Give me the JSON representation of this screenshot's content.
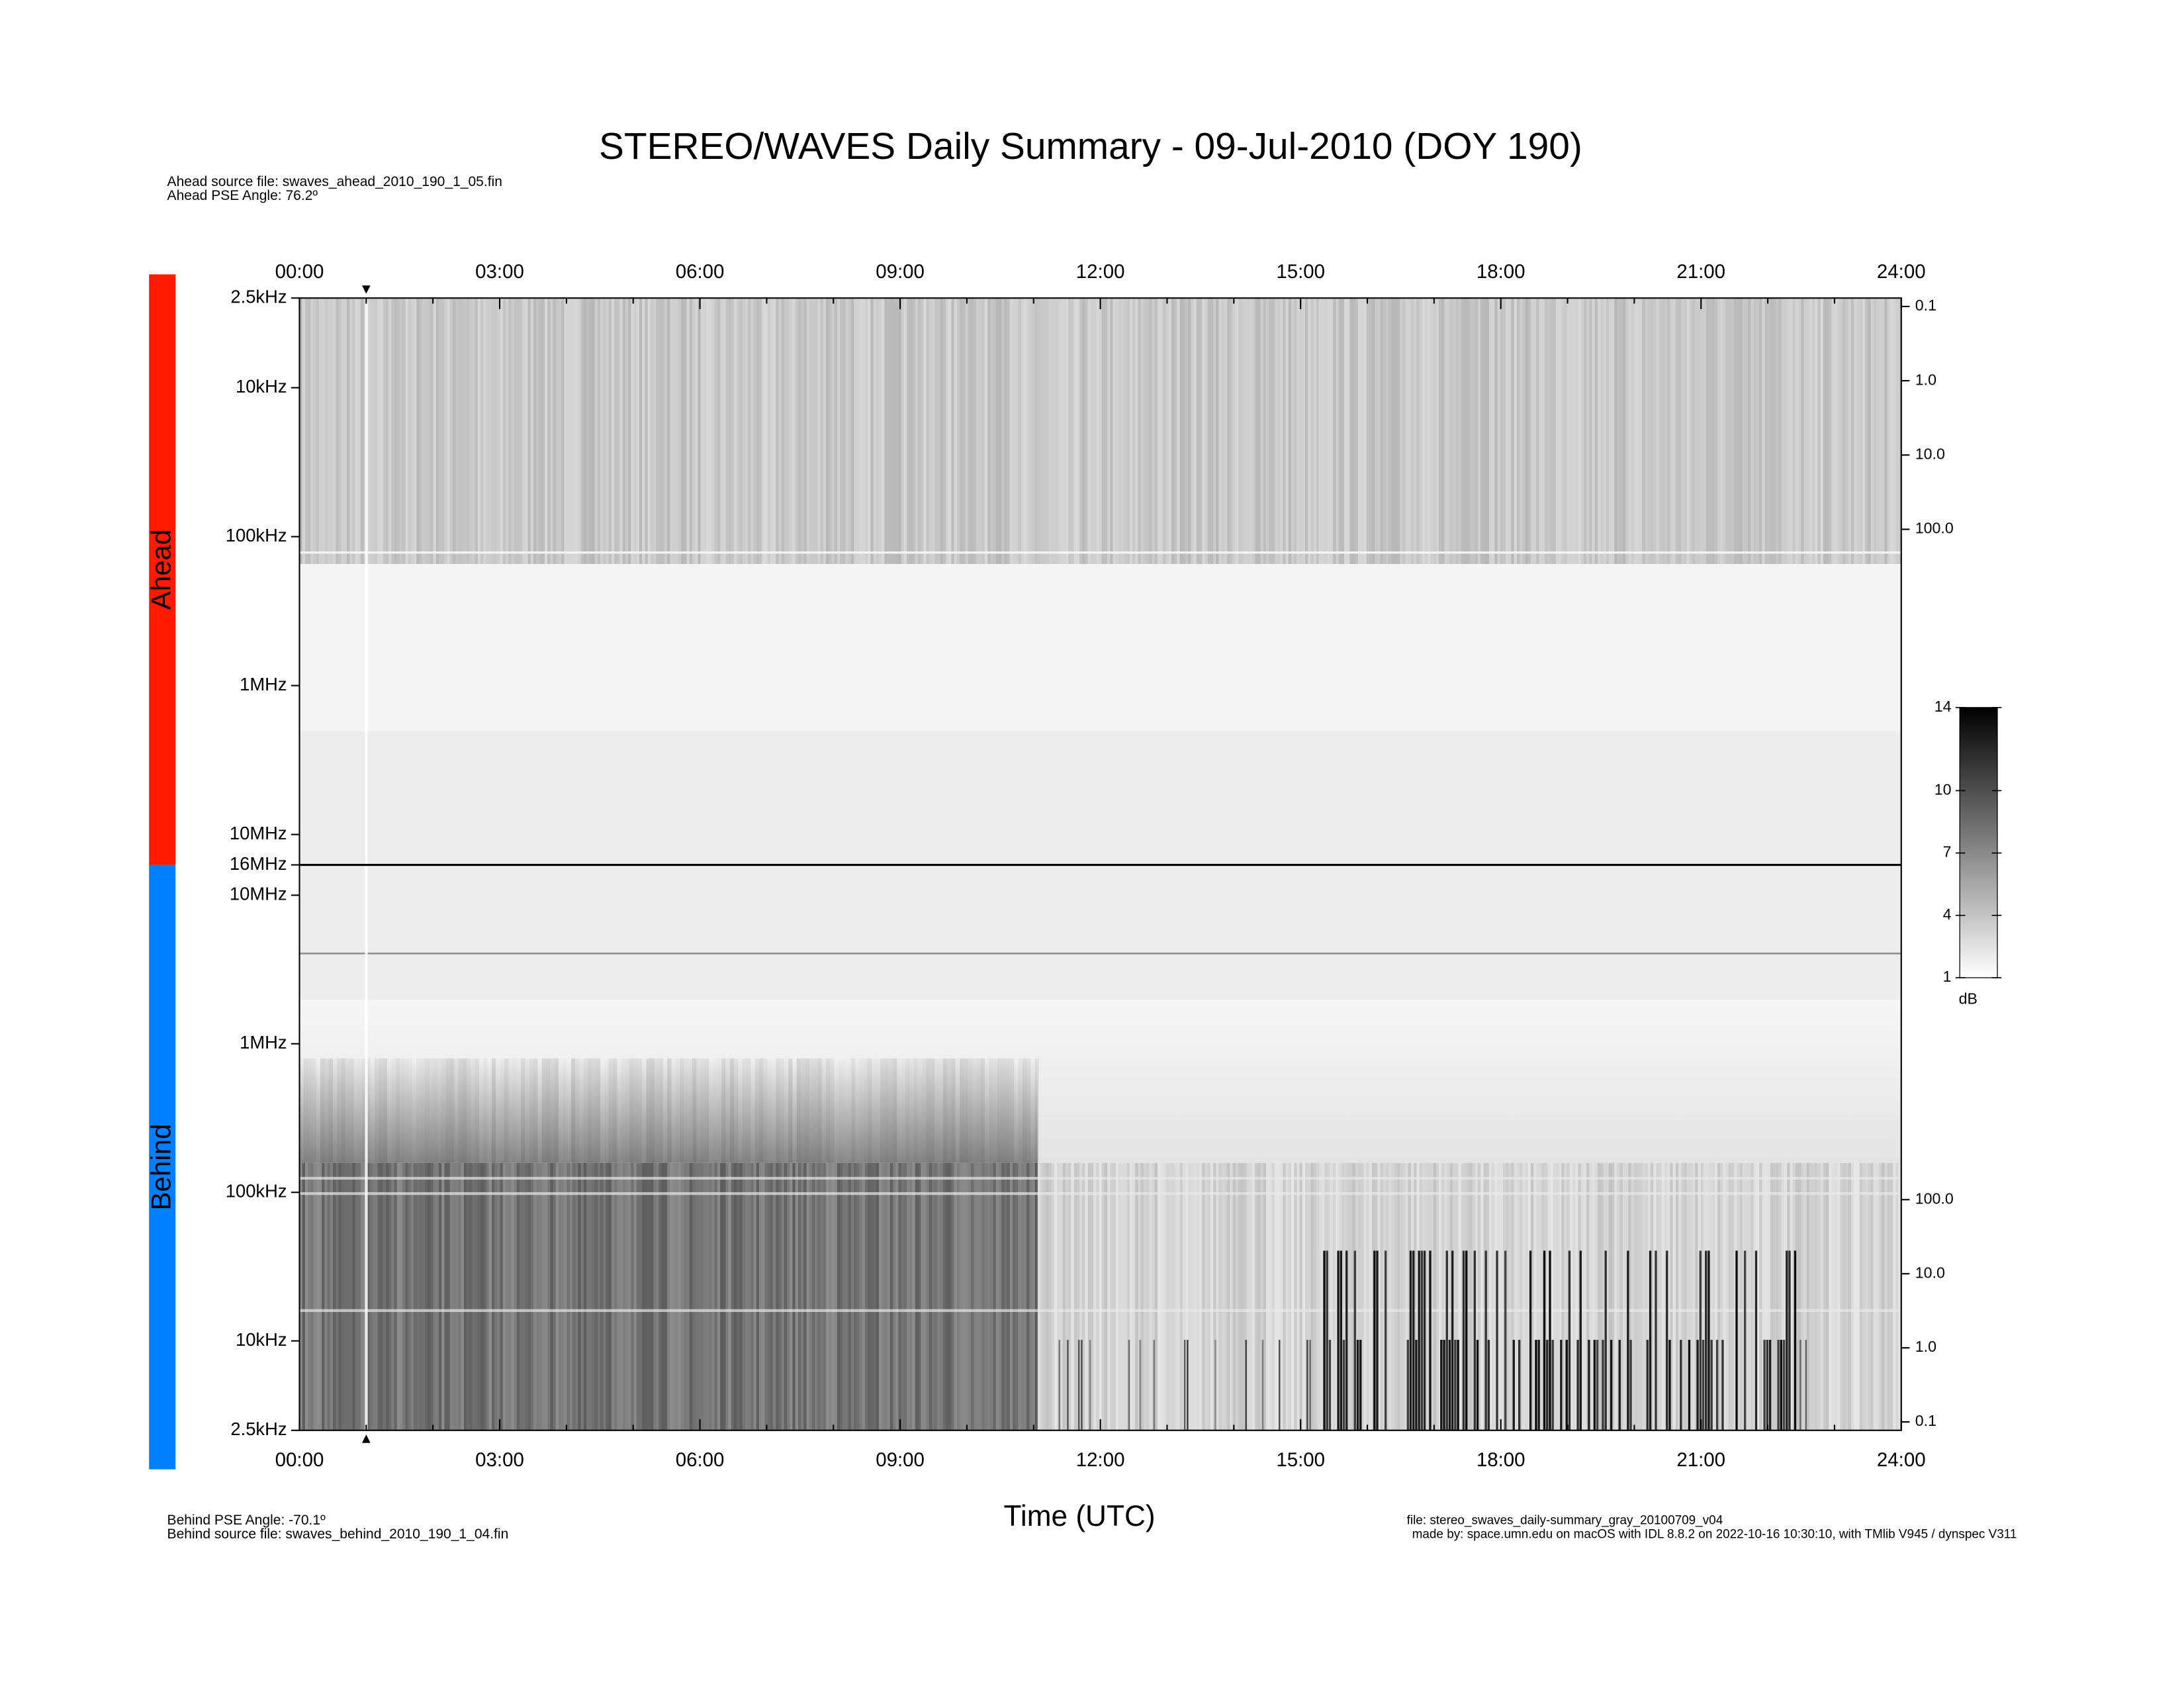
{
  "chart_data": {
    "type": "spectrogram",
    "title": "STEREO/WAVES Daily Summary - 09-Jul-2010 (DOY 190)",
    "xlabel": "Time (UTC)",
    "notes_top": [
      "Ahead source file: swaves_ahead_2010_190_1_05.fin",
      "Ahead PSE Angle:   76.2º"
    ],
    "notes_bottom": [
      "Behind PSE Angle:  -70.1º",
      "Behind source file: swaves_behind_2010_190_1_04.fin"
    ],
    "credits": [
      "file: stereo_swaves_daily-summary_gray_20100709_v04",
      "made by: space.umn.edu on macOS with IDL 8.8.2 on 2022-10-16 10:30:10, with TMlib V945 / dynspec V311"
    ],
    "xlim": [
      0,
      24
    ],
    "xticks": [
      {
        "value": 0,
        "label": "00:00"
      },
      {
        "value": 3,
        "label": "03:00"
      },
      {
        "value": 6,
        "label": "06:00"
      },
      {
        "value": 9,
        "label": "09:00"
      },
      {
        "value": 12,
        "label": "12:00"
      },
      {
        "value": 15,
        "label": "15:00"
      },
      {
        "value": 18,
        "label": "18:00"
      },
      {
        "value": 21,
        "label": "21:00"
      },
      {
        "value": 24,
        "label": "24:00"
      }
    ],
    "xminorticks": [
      1,
      2,
      4,
      5,
      7,
      8,
      10,
      11,
      13,
      14,
      16,
      17,
      19,
      20,
      22,
      23
    ],
    "markers": [
      1
    ],
    "panels": [
      {
        "name": "Ahead",
        "color": "#ff1a00",
        "log": true,
        "reversed": true,
        "ylim": [
          2500,
          16000000
        ],
        "yticks": [
          {
            "value": 2500,
            "label": "2.5kHz"
          },
          {
            "value": 10000,
            "label": "10kHz"
          },
          {
            "value": 100000,
            "label": "100kHz"
          },
          {
            "value": 1000000,
            "label": "1MHz"
          },
          {
            "value": 10000000,
            "label": "10MHz"
          },
          {
            "value": 16000000,
            "label": "16MHz"
          }
        ],
        "y2lim": [
          0.077,
          3300000
        ],
        "y2ticks": [
          0.1,
          {
            "value": 1,
            "label": "1.0"
          },
          {
            "value": 10,
            "label": "10.0"
          },
          {
            "value": 100,
            "label": "100.0"
          }
        ]
      },
      {
        "name": "Behind",
        "color": "#0080ff",
        "log": true,
        "reversed": false,
        "ylim": [
          2500,
          16000000
        ],
        "yticks": [
          {
            "value": 2500,
            "label": "2.5kHz"
          },
          {
            "value": 10000,
            "label": "10kHz"
          },
          {
            "value": 100000,
            "label": "100kHz"
          },
          {
            "value": 1000000,
            "label": "1MHz"
          },
          {
            "value": 10000000,
            "label": "10MHz"
          }
        ],
        "y2lim": [
          0.077,
          3300000
        ],
        "y2ticks": [
          0.1,
          {
            "value": 1,
            "label": "1.0"
          },
          {
            "value": 10,
            "label": "10.0"
          },
          {
            "value": 100,
            "label": "100.0"
          }
        ]
      }
    ],
    "colorbar": {
      "label": "dB",
      "lim": [
        1,
        14
      ],
      "ticks": [
        1,
        4,
        7,
        10,
        14
      ]
    }
  }
}
